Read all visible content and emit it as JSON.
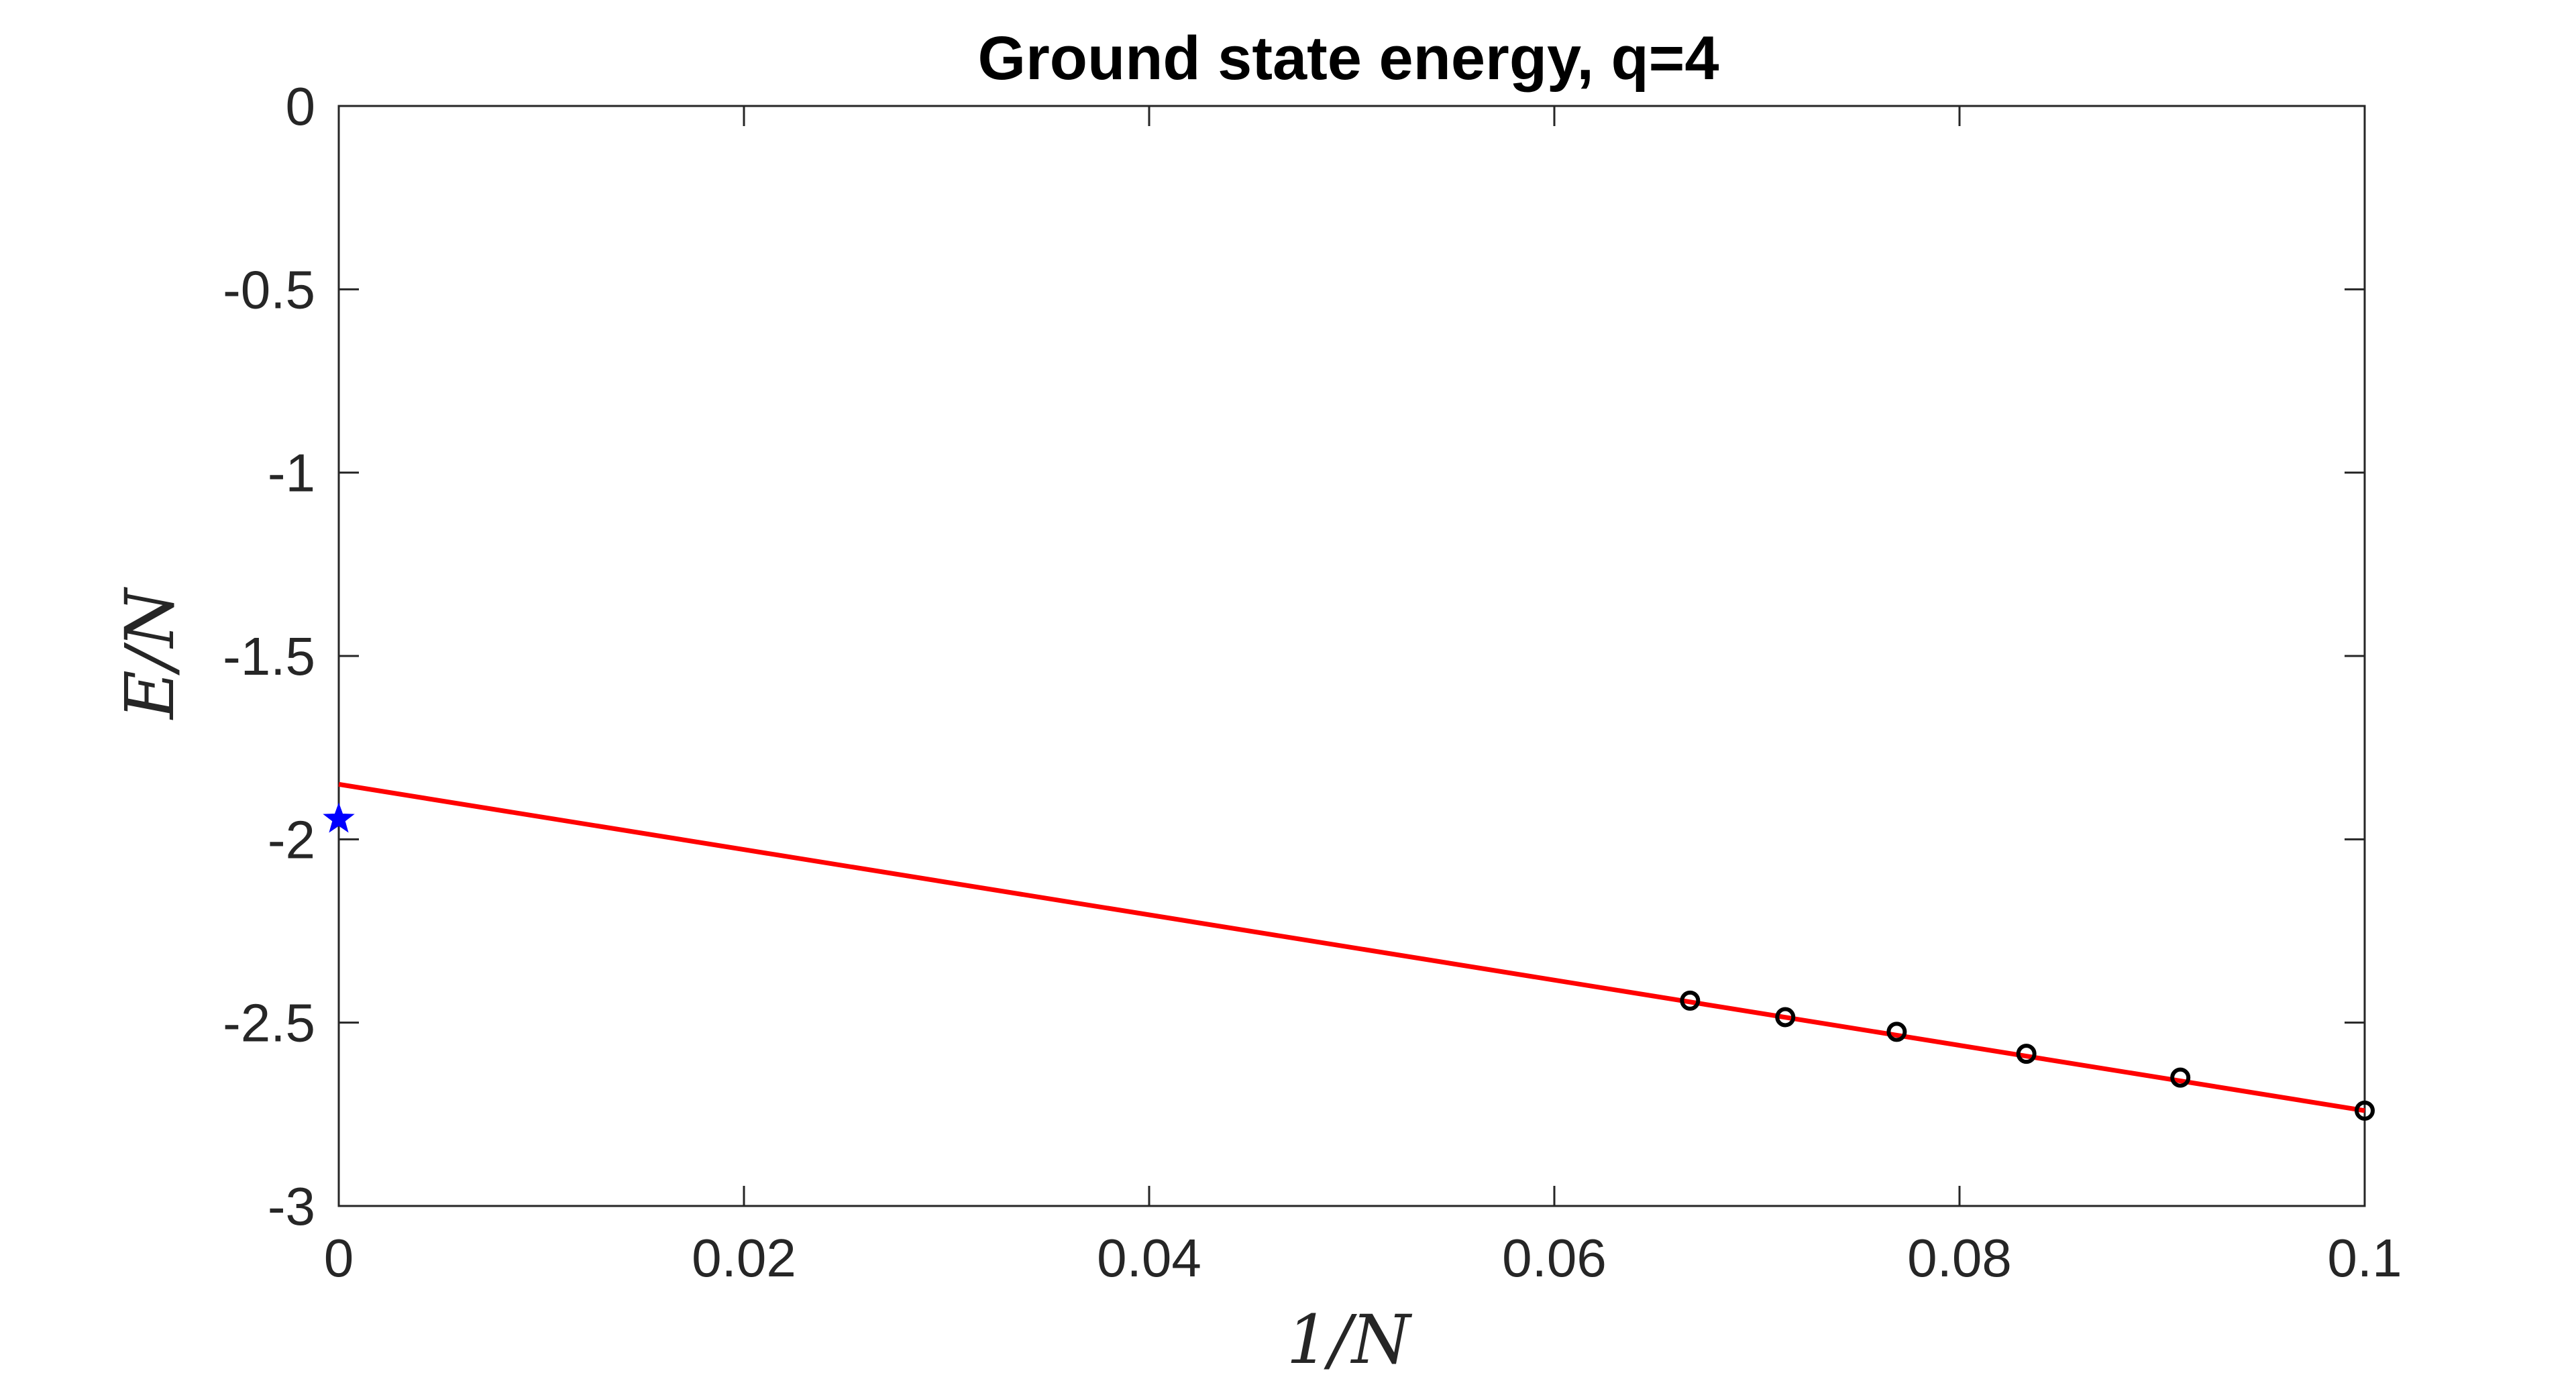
{
  "chart_data": {
    "type": "scatter",
    "title": "Ground state energy, q=4",
    "xlabel": "1/N",
    "ylabel": "E/N",
    "xlim": [
      0,
      0.1
    ],
    "ylim": [
      -3,
      0
    ],
    "xticks": [
      0,
      0.02,
      0.04,
      0.06,
      0.08,
      0.1
    ],
    "xtick_labels": [
      "0",
      "0.02",
      "0.04",
      "0.06",
      "0.08",
      "0.1"
    ],
    "yticks": [
      0,
      -0.5,
      -1,
      -1.5,
      -2,
      -2.5,
      -3
    ],
    "ytick_labels": [
      "0",
      "-0.5",
      "-1",
      "-1.5",
      "-2",
      "-2.5",
      "-3"
    ],
    "grid": false,
    "series": [
      {
        "kind": "points",
        "marker": "circle",
        "color": "#000000",
        "x": [
          0.0667,
          0.0714,
          0.0769,
          0.0833,
          0.0909,
          0.1
        ],
        "y": [
          -2.44,
          -2.485,
          -2.525,
          -2.585,
          -2.65,
          -2.74
        ]
      },
      {
        "kind": "fit-line",
        "color": "#ff0000",
        "x": [
          0,
          0.1
        ],
        "y": [
          -1.85,
          -2.74
        ]
      },
      {
        "kind": "points",
        "marker": "star",
        "color": "#0000ff",
        "x": [
          0
        ],
        "y": [
          -1.945
        ]
      }
    ]
  }
}
